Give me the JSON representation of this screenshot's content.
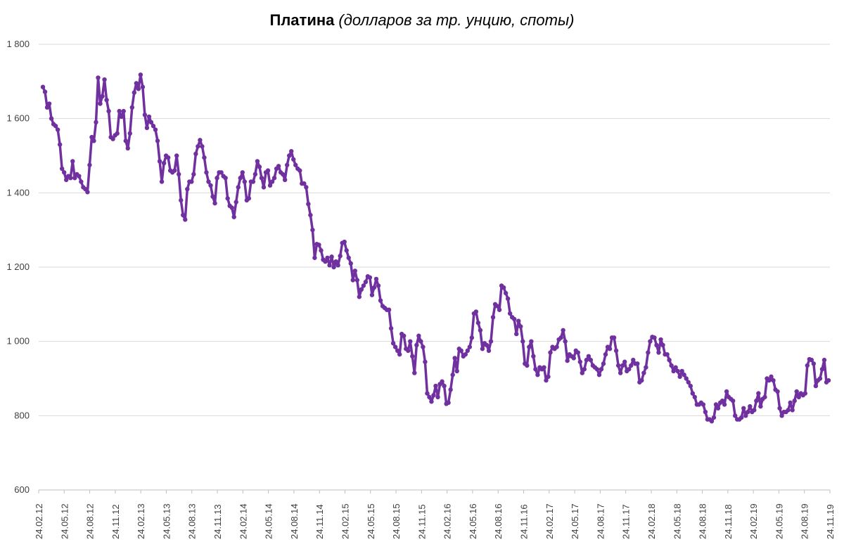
{
  "chart_data": {
    "type": "line",
    "title_bold": "Платина",
    "title_italic": "(долларов за тр. унцию, споты)",
    "xlabel": "",
    "ylabel": "",
    "ylim": [
      600,
      1800
    ],
    "yticks": [
      600,
      800,
      1000,
      1200,
      1400,
      1600,
      1800
    ],
    "ytick_labels": [
      "600",
      "800",
      "1 000",
      "1 200",
      "1 400",
      "1 600",
      "1 800"
    ],
    "xtick_labels": [
      "24.02.12",
      "24.05.12",
      "24.08.12",
      "24.11.12",
      "24.02.13",
      "24.05.13",
      "24.08.13",
      "24.11.13",
      "24.02.14",
      "24.05.14",
      "24.08.14",
      "24.11.14",
      "24.02.15",
      "24.05.15",
      "24.08.15",
      "24.11.15",
      "24.02.16",
      "24.05.16",
      "24.08.16",
      "24.11.16",
      "24.02.17",
      "24.05.17",
      "24.08.17",
      "24.11.17",
      "24.02.18",
      "24.05.18",
      "24.08.18",
      "24.11.18",
      "24.02.19",
      "24.05.19",
      "24.08.19",
      "24.11.19"
    ],
    "grid": true,
    "legend": "none",
    "series": [
      {
        "name": "Платина",
        "color": "#7030A0",
        "values": [
          1685,
          1672,
          1630,
          1640,
          1600,
          1585,
          1580,
          1570,
          1530,
          1465,
          1455,
          1435,
          1445,
          1440,
          1485,
          1440,
          1450,
          1445,
          1430,
          1415,
          1410,
          1402,
          1475,
          1550,
          1540,
          1590,
          1710,
          1640,
          1660,
          1705,
          1650,
          1620,
          1550,
          1545,
          1555,
          1560,
          1620,
          1605,
          1620,
          1540,
          1520,
          1560,
          1630,
          1670,
          1695,
          1680,
          1718,
          1685,
          1610,
          1575,
          1605,
          1590,
          1580,
          1570,
          1540,
          1485,
          1430,
          1480,
          1500,
          1495,
          1460,
          1455,
          1460,
          1500,
          1450,
          1380,
          1340,
          1328,
          1410,
          1430,
          1430,
          1450,
          1505,
          1525,
          1542,
          1525,
          1495,
          1455,
          1430,
          1420,
          1390,
          1372,
          1440,
          1455,
          1455,
          1445,
          1440,
          1385,
          1365,
          1360,
          1335,
          1375,
          1415,
          1440,
          1455,
          1430,
          1380,
          1385,
          1430,
          1430,
          1450,
          1485,
          1470,
          1440,
          1415,
          1455,
          1460,
          1420,
          1430,
          1440,
          1465,
          1472,
          1455,
          1450,
          1435,
          1475,
          1500,
          1512,
          1490,
          1475,
          1465,
          1460,
          1425,
          1425,
          1415,
          1370,
          1340,
          1300,
          1225,
          1262,
          1260,
          1245,
          1220,
          1215,
          1225,
          1205,
          1228,
          1200,
          1215,
          1205,
          1230,
          1265,
          1268,
          1245,
          1225,
          1210,
          1165,
          1190,
          1165,
          1120,
          1140,
          1150,
          1160,
          1175,
          1172,
          1125,
          1145,
          1168,
          1150,
          1110,
          1095,
          1090,
          1085,
          1085,
          1035,
          995,
          985,
          975,
          965,
          1020,
          1015,
          980,
          975,
          1000,
          960,
          915,
          990,
          1015,
          1000,
          985,
          945,
          860,
          850,
          838,
          855,
          880,
          850,
          885,
          892,
          880,
          832,
          835,
          870,
          910,
          955,
          920,
          980,
          975,
          960,
          965,
          975,
          985,
          1010,
          1075,
          1080,
          1050,
          1030,
          980,
          995,
          990,
          975,
          1000,
          1065,
          1100,
          1095,
          1085,
          1150,
          1145,
          1130,
          1115,
          1075,
          1065,
          1060,
          1020,
          1055,
          1040,
          1000,
          940,
          935,
          985,
          1000,
          960,
          925,
          910,
          930,
          925,
          930,
          895,
          905,
          970,
          985,
          980,
          985,
          1005,
          1010,
          1030,
          1000,
          948,
          965,
          960,
          955,
          975,
          970,
          945,
          915,
          925,
          950,
          960,
          950,
          935,
          930,
          925,
          910,
          925,
          940,
          965,
          985,
          980,
          1010,
          1010,
          975,
          935,
          915,
          935,
          945,
          920,
          925,
          935,
          950,
          940,
          940,
          890,
          895,
          915,
          930,
          970,
          1000,
          1012,
          1010,
          990,
          970,
          1005,
          990,
          965,
          965,
          950,
          935,
          920,
          930,
          920,
          905,
          920,
          910,
          900,
          890,
          880,
          860,
          850,
          830,
          830,
          835,
          830,
          810,
          790,
          790,
          785,
          795,
          830,
          820,
          835,
          840,
          830,
          865,
          850,
          845,
          840,
          800,
          790,
          790,
          795,
          820,
          800,
          810,
          825,
          810,
          815,
          840,
          860,
          825,
          845,
          850,
          900,
          895,
          905,
          895,
          870,
          865,
          820,
          800,
          810,
          810,
          815,
          835,
          815,
          840,
          865,
          850,
          860,
          855,
          860,
          935,
          952,
          950,
          940,
          880,
          895,
          900,
          925,
          950,
          890,
          895
        ]
      }
    ]
  }
}
